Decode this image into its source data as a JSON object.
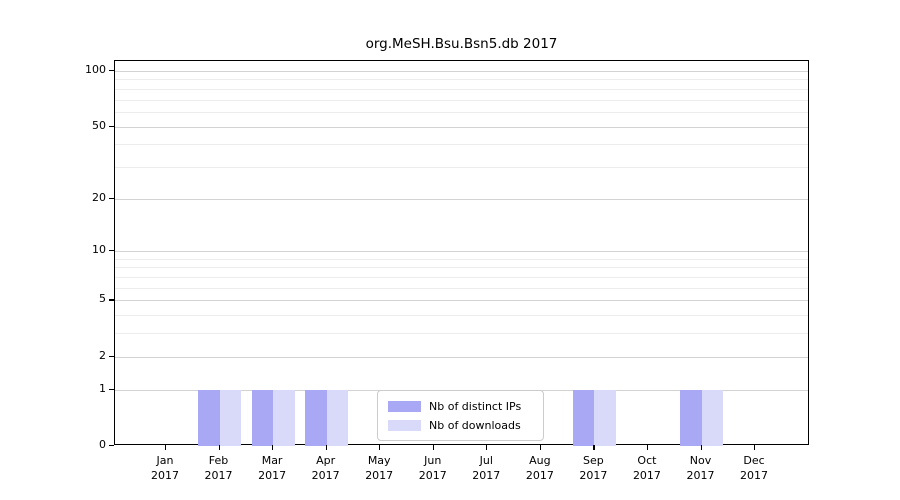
{
  "chart_data": {
    "type": "bar",
    "title": "org.MeSH.Bsu.Bsn5.db 2017",
    "categories": [
      "Jan 2017",
      "Feb 2017",
      "Mar 2017",
      "Apr 2017",
      "May 2017",
      "Jun 2017",
      "Jul 2017",
      "Aug 2017",
      "Sep 2017",
      "Oct 2017",
      "Nov 2017",
      "Dec 2017"
    ],
    "series": [
      {
        "name": "Nb of distinct IPs",
        "color": "#a8a8f5",
        "values": [
          0,
          1,
          1,
          1,
          0,
          0,
          0,
          0,
          1,
          0,
          1,
          0
        ]
      },
      {
        "name": "Nb of downloads",
        "color": "#d9d9fa",
        "values": [
          0,
          1,
          1,
          1,
          0,
          0,
          0,
          0,
          1,
          0,
          1,
          0
        ]
      }
    ],
    "xlabel": "",
    "ylabel": "",
    "yscale": "log1p",
    "ylim": [
      0,
      113
    ],
    "ytick_values": [
      0,
      1,
      2,
      5,
      10,
      20,
      50,
      100
    ],
    "ytick_labels": [
      "0",
      "1",
      "2",
      "5",
      "10",
      "20",
      "50",
      "100"
    ],
    "minor_ytick_values": [
      3,
      4,
      6,
      7,
      8,
      9,
      30,
      40,
      60,
      70,
      80,
      90
    ],
    "grid": true,
    "legend_position": "lower center"
  },
  "legend": {
    "items": [
      {
        "label": "Nb of distinct IPs",
        "color": "#a8a8f5"
      },
      {
        "label": "Nb of downloads",
        "color": "#d9d9fa"
      }
    ]
  },
  "colors": {
    "background": "#ffffff",
    "bar_distinct_ips": "#a8a8f5",
    "bar_downloads": "#d9d9fa",
    "grid_major": "#d3d3d3",
    "grid_minor": "#ededed",
    "axis": "#000000",
    "text": "#000000",
    "legend_border": "#cccccc"
  }
}
